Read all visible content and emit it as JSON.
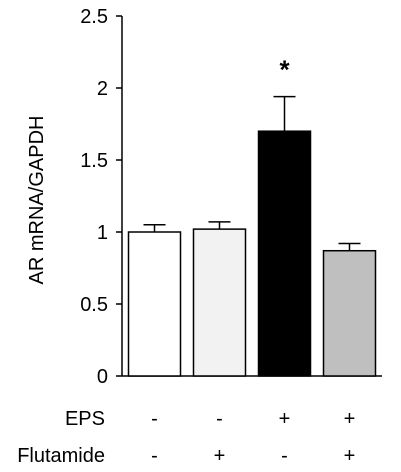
{
  "chart_data": {
    "type": "bar",
    "ylabel": "AR mRNA/GAPDH",
    "ylim": [
      0,
      2.5
    ],
    "yticks": [
      0,
      0.5,
      1,
      1.5,
      2,
      2.5
    ],
    "ytick_labels": [
      "0",
      "0.5",
      "1",
      "1.5",
      "2",
      "2.5"
    ],
    "grid": false,
    "bars": [
      {
        "value": 1.0,
        "error": 0.05,
        "fill": "#ffffff",
        "significance": ""
      },
      {
        "value": 1.02,
        "error": 0.05,
        "fill": "#f2f2f2",
        "significance": ""
      },
      {
        "value": 1.7,
        "error": 0.24,
        "fill": "#000000",
        "significance": "*"
      },
      {
        "value": 0.87,
        "error": 0.05,
        "fill": "#bfbfbf",
        "significance": ""
      }
    ],
    "conditions": [
      {
        "name": "EPS",
        "values": [
          "-",
          "-",
          "+",
          "+"
        ]
      },
      {
        "name": "Flutamide",
        "values": [
          "-",
          "+",
          "-",
          "+"
        ]
      }
    ]
  }
}
